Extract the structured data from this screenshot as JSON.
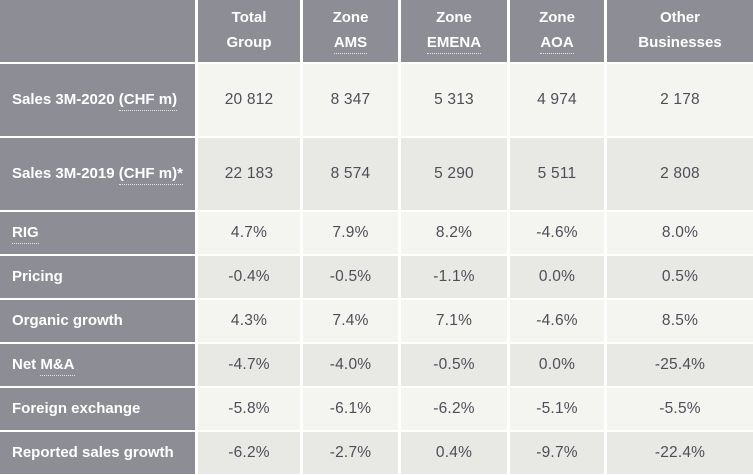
{
  "colors": {
    "header_bg": "#8d8d95",
    "row_light_bg": "#f4f4f1",
    "row_dark_bg": "#e8e8e5",
    "header_text": "#ffffff",
    "data_text": "#4e4e58",
    "grid_gap": "#ffffff"
  },
  "chart_data": {
    "type": "table",
    "column_labels": [
      "",
      "Total Group",
      "Zone AMS",
      "Zone EMENA",
      "Zone AOA",
      "Other Businesses"
    ],
    "columns": [
      {
        "line1": "",
        "line2_plain": "",
        "line2_abbr": ""
      },
      {
        "line1": "Total",
        "line2_plain": "Group",
        "line2_abbr": ""
      },
      {
        "line1": "Zone",
        "line2_plain": "",
        "line2_abbr": "AMS"
      },
      {
        "line1": "Zone",
        "line2_plain": "",
        "line2_abbr": "EMENA"
      },
      {
        "line1": "Zone",
        "line2_plain": "",
        "line2_abbr": "AOA"
      },
      {
        "line1": "Other",
        "line2_plain": "Businesses",
        "line2_abbr": ""
      }
    ],
    "rows": [
      {
        "label": "Sales 3M-2020 (CHF m)",
        "pre": "Sales 3M-2020 ",
        "abbr": "(CHF m)",
        "values": [
          "20 812",
          "8 347",
          "5 313",
          "4 974",
          "2 178"
        ]
      },
      {
        "label": "Sales 3M-2019 (CHF m)*",
        "pre": "Sales 3M-2019 ",
        "abbr": "(CHF m)*",
        "values": [
          "22 183",
          "8 574",
          "5 290",
          "5 511",
          "2 808"
        ]
      },
      {
        "label": "RIG",
        "pre": "",
        "abbr": "RIG",
        "values": [
          "4.7%",
          "7.9%",
          "8.2%",
          "-4.6%",
          "8.0%"
        ]
      },
      {
        "label": "Pricing",
        "pre": "Pricing",
        "abbr": "",
        "values": [
          "-0.4%",
          "-0.5%",
          "-1.1%",
          "0.0%",
          "0.5%"
        ]
      },
      {
        "label": "Organic growth",
        "pre": "Organic growth",
        "abbr": "",
        "values": [
          "4.3%",
          "7.4%",
          "7.1%",
          "-4.6%",
          "8.5%"
        ]
      },
      {
        "label": "Net M&A",
        "pre": "Net ",
        "abbr": "M&A",
        "values": [
          "-4.7%",
          "-4.0%",
          "-0.5%",
          "0.0%",
          "-25.4%"
        ]
      },
      {
        "label": "Foreign exchange",
        "pre": "Foreign exchange",
        "abbr": "",
        "values": [
          "-5.8%",
          "-6.1%",
          "-6.2%",
          "-5.1%",
          "-5.5%"
        ]
      },
      {
        "label": "Reported sales growth",
        "pre": "Reported sales growth",
        "abbr": "",
        "values": [
          "-6.2%",
          "-2.7%",
          "0.4%",
          "-9.7%",
          "-22.4%"
        ]
      }
    ]
  }
}
